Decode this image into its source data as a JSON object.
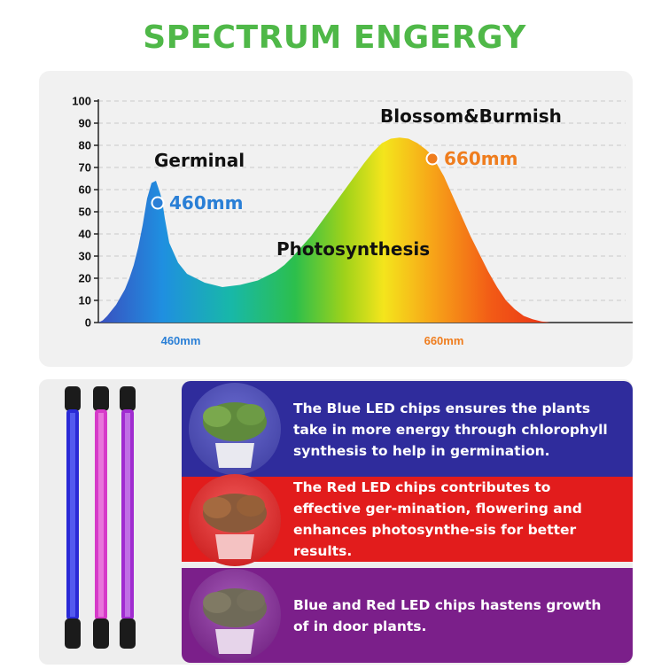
{
  "title": "SPECTRUM ENGERGY",
  "chart_data": {
    "type": "area",
    "title": "",
    "xlabel": "",
    "ylabel": "",
    "ylim": [
      0,
      100
    ],
    "y_ticks": [
      0,
      10,
      20,
      30,
      40,
      50,
      60,
      70,
      80,
      90,
      100
    ],
    "x_tick_labels": [
      {
        "label": "460mm",
        "color": "#2a7fd6"
      },
      {
        "label": "660mm",
        "color": "#ef7d1e"
      }
    ],
    "series": [
      {
        "x": [
          0,
          5,
          10,
          20,
          30,
          35,
          40,
          45,
          50,
          55,
          60,
          65,
          70,
          72,
          75,
          80,
          90,
          100,
          120,
          140,
          160,
          180,
          190,
          200,
          210,
          220,
          240,
          260,
          280,
          300,
          310,
          320,
          330,
          340,
          350,
          360,
          370,
          375,
          380,
          390,
          400,
          410,
          420,
          430,
          440,
          450,
          460,
          470,
          480,
          490,
          500,
          510,
          520,
          530,
          540,
          550,
          555
        ],
        "y": [
          0,
          1,
          3,
          8,
          15,
          20,
          26,
          34,
          44,
          56,
          63,
          64,
          58,
          55,
          47,
          36,
          27,
          22,
          18,
          16,
          17,
          19,
          21,
          23,
          26,
          30,
          39,
          50,
          61,
          72,
          77,
          81,
          83,
          83.5,
          83,
          81,
          78,
          76,
          73,
          66,
          57,
          48,
          39,
          31,
          23,
          16,
          10,
          6,
          3,
          1.5,
          0.5,
          0,
          0,
          0,
          0,
          0,
          0
        ]
      }
    ],
    "points": [
      {
        "x": 67,
        "y": 54,
        "label": "460mm",
        "color": "#2a7fd6"
      },
      {
        "x": 377,
        "y": 74,
        "label": "660mm",
        "color": "#ef7d1e"
      }
    ],
    "annotations": [
      "Germinal",
      "Blossom&Burmish",
      "Photosynthesis"
    ],
    "grid": true
  },
  "descriptions": [
    {
      "text": "The Blue LED chips ensures the plants take in more energy through chlorophyll synthesis to help in germination.",
      "color": "#2f2c9c"
    },
    {
      "text": "The Red LED chips contributes to effective ger-mination, flowering and enhances photosynthe-sis for better results.",
      "color": "#e21c1c"
    },
    {
      "text": "Blue and Red LED chips hastens growth of in door plants.",
      "color": "#7b1f8a"
    }
  ]
}
